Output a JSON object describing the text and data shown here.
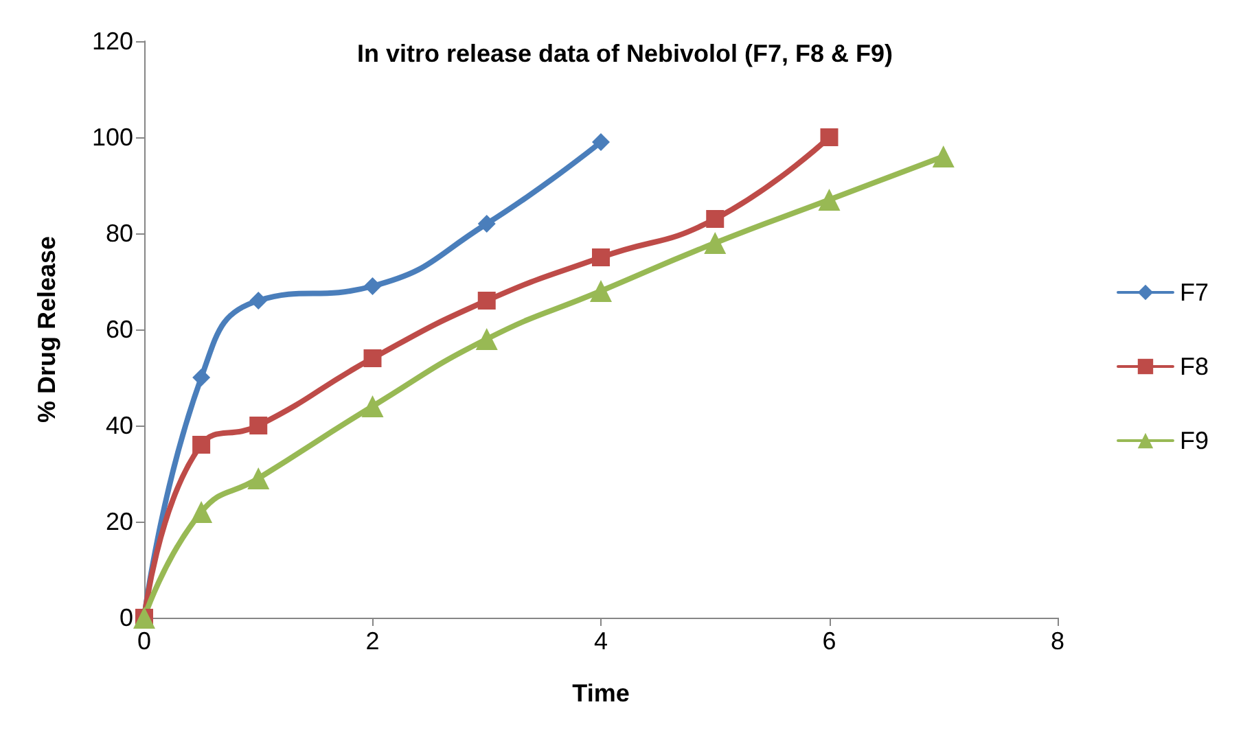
{
  "chart_data": {
    "type": "line",
    "title": "In vitro release data of Nebivolol (F7, F8 & F9)",
    "xlabel": "Time",
    "ylabel": "% Drug Release",
    "xlim": [
      0,
      8
    ],
    "xticks": [
      0,
      2,
      4,
      6,
      8
    ],
    "ylim": [
      0,
      120
    ],
    "yticks": [
      0,
      20,
      40,
      60,
      80,
      100,
      120
    ],
    "grid": false,
    "legend": "right",
    "series": [
      {
        "name": "F7",
        "color": "#4a7ebb",
        "marker": "diamond",
        "x": [
          0,
          0.5,
          1,
          2,
          3,
          4
        ],
        "values": [
          0,
          50,
          66,
          69,
          82,
          99
        ]
      },
      {
        "name": "F8",
        "color": "#be4b48",
        "marker": "square",
        "x": [
          0,
          0.5,
          1,
          2,
          3,
          4,
          5,
          6
        ],
        "values": [
          0,
          36,
          40,
          54,
          66,
          75,
          83,
          100
        ]
      },
      {
        "name": "F9",
        "color": "#98b954",
        "marker": "triangle",
        "x": [
          0,
          0.5,
          1,
          2,
          3,
          4,
          5,
          6,
          7
        ],
        "values": [
          0,
          22,
          29,
          44,
          58,
          68,
          78,
          87,
          96
        ]
      }
    ]
  }
}
